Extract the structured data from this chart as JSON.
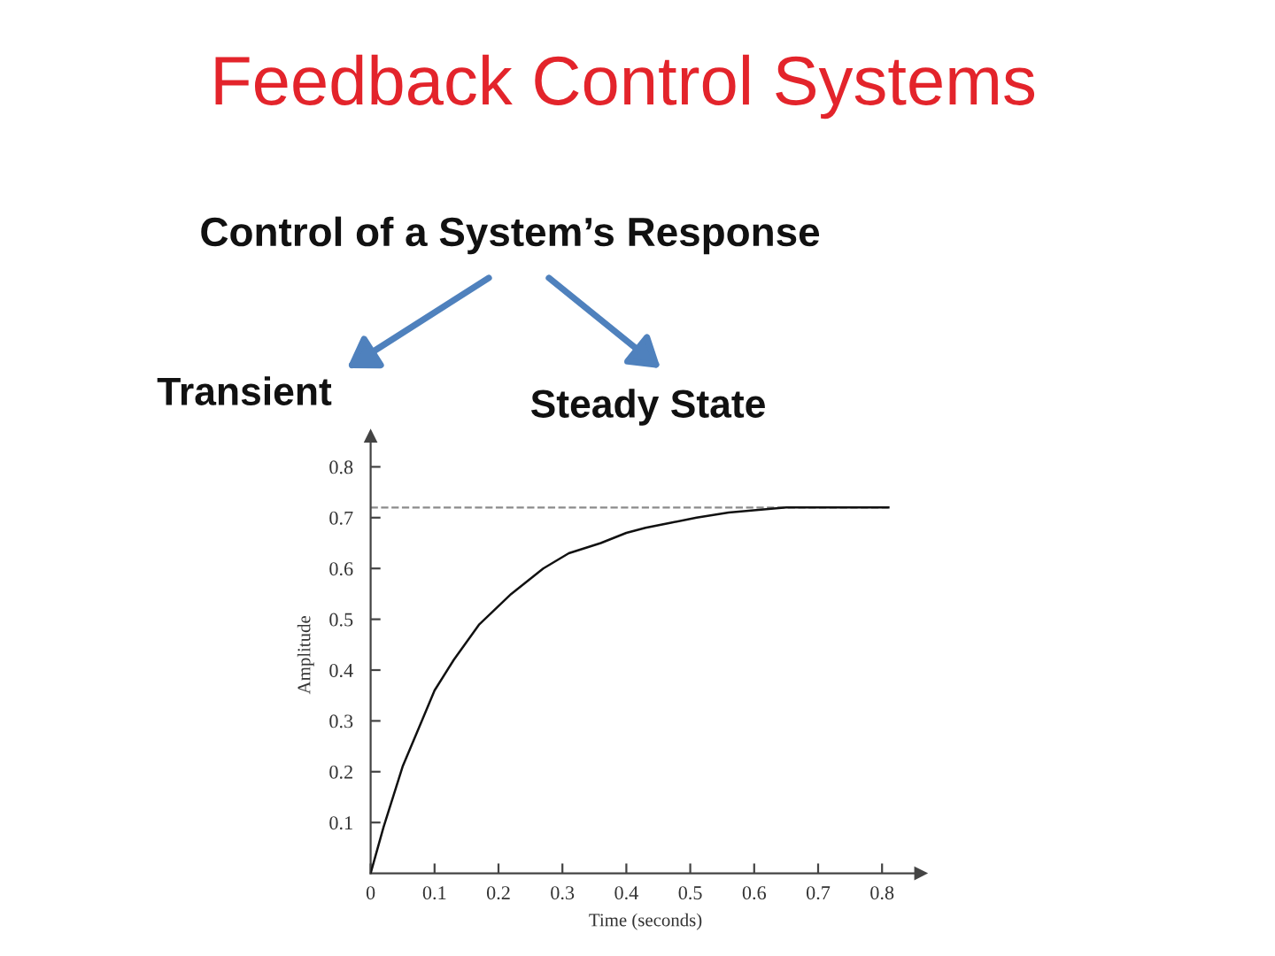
{
  "chart_data": {
    "type": "line",
    "title": "Feedback Control Systems",
    "subtitle": "Control of a System’s Response",
    "annotations": [
      "Transient",
      "Steady State"
    ],
    "xlabel": "Time (seconds)",
    "ylabel": "Amplitude",
    "x": [
      0,
      0.02,
      0.05,
      0.08,
      0.1,
      0.13,
      0.17,
      0.22,
      0.27,
      0.31,
      0.36,
      0.4,
      0.43,
      0.47,
      0.51,
      0.56,
      0.65,
      0.73,
      0.81
    ],
    "series": [
      {
        "color": "#111111",
        "values": [
          0,
          0.09,
          0.21,
          0.3,
          0.36,
          0.42,
          0.49,
          0.55,
          0.6,
          0.63,
          0.65,
          0.67,
          0.68,
          0.69,
          0.7,
          0.71,
          0.72,
          0.72,
          0.72
        ]
      }
    ],
    "xlim": [
      0,
      0.86
    ],
    "ylim": [
      0,
      0.86
    ],
    "xticks": [
      0,
      0.1,
      0.2,
      0.3,
      0.4,
      0.5,
      0.6,
      0.7,
      0.8
    ],
    "yticks": [
      0.1,
      0.2,
      0.3,
      0.4,
      0.5,
      0.6,
      0.7,
      0.8
    ],
    "ref_lines": [
      {
        "axis": "y",
        "value": 0.72,
        "color": "#8c8c8c",
        "line_style": "dashed"
      }
    ],
    "line_style": "solid"
  }
}
